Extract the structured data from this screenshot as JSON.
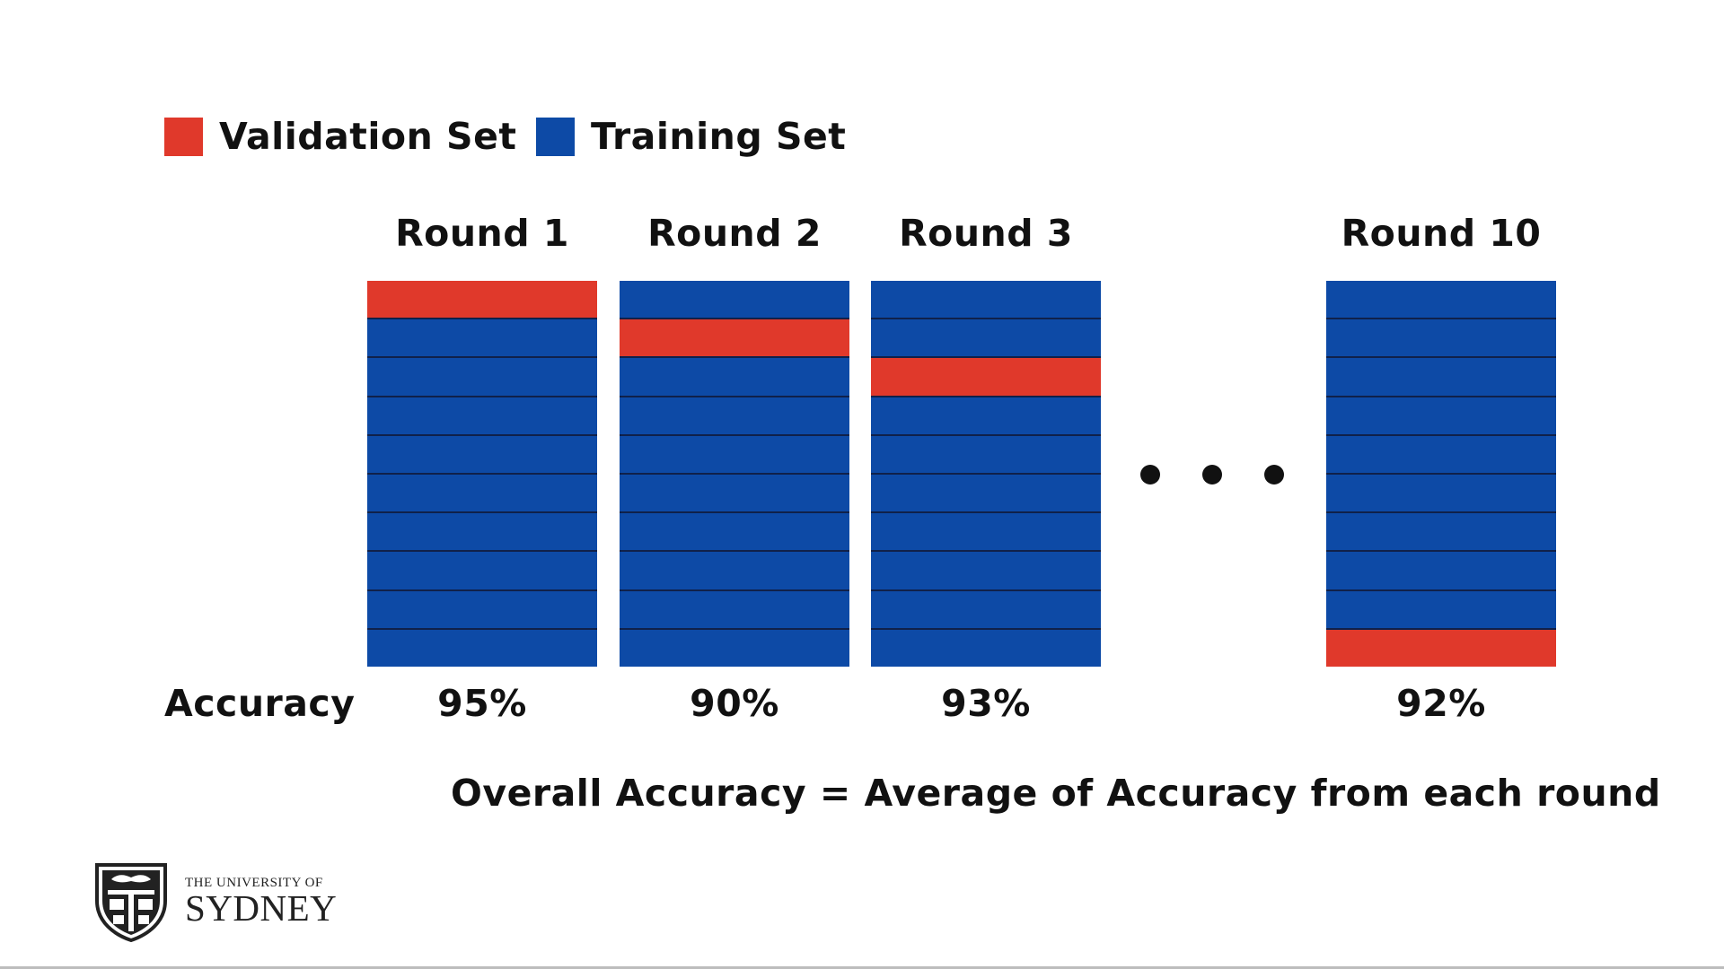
{
  "colors": {
    "validation": "#e0392b",
    "training": "#0d4aa6",
    "text": "#111111"
  },
  "legend": [
    {
      "label": "Validation Set",
      "color": "#e0392b"
    },
    {
      "label": "Training Set",
      "color": "#0d4aa6"
    }
  ],
  "folds_per_round": 10,
  "rounds": [
    {
      "label": "Round 1",
      "validation_fold": 1,
      "accuracy": "95%"
    },
    {
      "label": "Round 2",
      "validation_fold": 2,
      "accuracy": "90%"
    },
    {
      "label": "Round 3",
      "validation_fold": 3,
      "accuracy": "93%"
    },
    {
      "label": "Round 10",
      "validation_fold": 10,
      "accuracy": "92%"
    }
  ],
  "accuracy_label": "Accuracy",
  "summary": "Overall Accuracy = Average of Accuracy from each round",
  "logo": {
    "small": "THE UNIVERSITY OF",
    "large": "SYDNEY",
    "icon": "university-crest-icon"
  }
}
